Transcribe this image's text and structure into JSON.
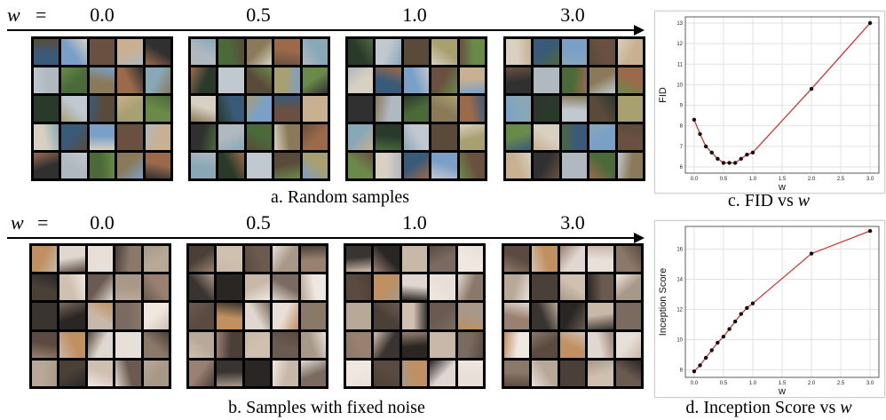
{
  "rows": [
    {
      "w_symbol": "w",
      "equals": "=",
      "w_values": [
        "0.0",
        "0.5",
        "1.0",
        "3.0"
      ],
      "caption": "a. Random samples",
      "palette": [
        "#3a5a7a",
        "#8a7a5a",
        "#6a8a4a",
        "#b0b8c0",
        "#5a4a3a",
        "#c8b090",
        "#2a3a2a",
        "#7aa0c8",
        "#9a6a4a",
        "#d8d0c0",
        "#4a6a3a",
        "#a8a070",
        "#303030",
        "#c0c8d0",
        "#6a5040",
        "#88a8b8"
      ]
    },
    {
      "w_symbol": "w",
      "equals": "=",
      "w_values": [
        "0.0",
        "0.5",
        "1.0",
        "3.0"
      ],
      "caption": "b. Samples with fixed noise",
      "palette": [
        "#c8b8a8",
        "#8a7868",
        "#3a3430",
        "#e0d8d0",
        "#a89888",
        "#5a4a40",
        "#d0c0b0",
        "#7a6a60",
        "#b8a898",
        "#2a2624",
        "#e8e0d8",
        "#9a8070",
        "#c09060",
        "#6a5a50",
        "#f0e8e0",
        "#4a4038"
      ]
    }
  ],
  "chart_data": [
    {
      "type": "line",
      "caption": "c. FID vs",
      "caption_var": "w",
      "xlabel": "w",
      "ylabel": "FID",
      "xlim": [
        -0.15,
        3.15
      ],
      "ylim": [
        5.7,
        13.3
      ],
      "xticks": [
        "0.0",
        "0.5",
        "1.0",
        "1.5",
        "2.0",
        "2.5",
        "3.0"
      ],
      "yticks": [
        "6",
        "7",
        "8",
        "9",
        "10",
        "11",
        "12",
        "13"
      ],
      "grid": true,
      "line_color": "#d62728",
      "marker_color": "#111111",
      "x": [
        0.0,
        0.1,
        0.2,
        0.3,
        0.4,
        0.5,
        0.6,
        0.7,
        0.8,
        0.9,
        1.0,
        2.0,
        3.0
      ],
      "y": [
        8.3,
        7.6,
        7.0,
        6.7,
        6.4,
        6.2,
        6.2,
        6.2,
        6.4,
        6.6,
        6.7,
        9.8,
        13.0
      ]
    },
    {
      "type": "line",
      "caption": "d. Inception Score vs",
      "caption_var": "w",
      "xlabel": "w",
      "ylabel": "Inception Score",
      "xlim": [
        -0.15,
        3.15
      ],
      "ylim": [
        7.5,
        17.5
      ],
      "xticks": [
        "0.0",
        "0.5",
        "1.0",
        "1.5",
        "2.0",
        "2.5",
        "3.0"
      ],
      "yticks": [
        "8",
        "10",
        "12",
        "14",
        "16"
      ],
      "grid": true,
      "line_color": "#d62728",
      "marker_color": "#111111",
      "x": [
        0.0,
        0.1,
        0.2,
        0.3,
        0.4,
        0.5,
        0.6,
        0.7,
        0.8,
        0.9,
        1.0,
        2.0,
        3.0
      ],
      "y": [
        7.9,
        8.3,
        8.8,
        9.3,
        9.8,
        10.2,
        10.7,
        11.2,
        11.7,
        12.1,
        12.4,
        15.7,
        17.2
      ]
    }
  ]
}
